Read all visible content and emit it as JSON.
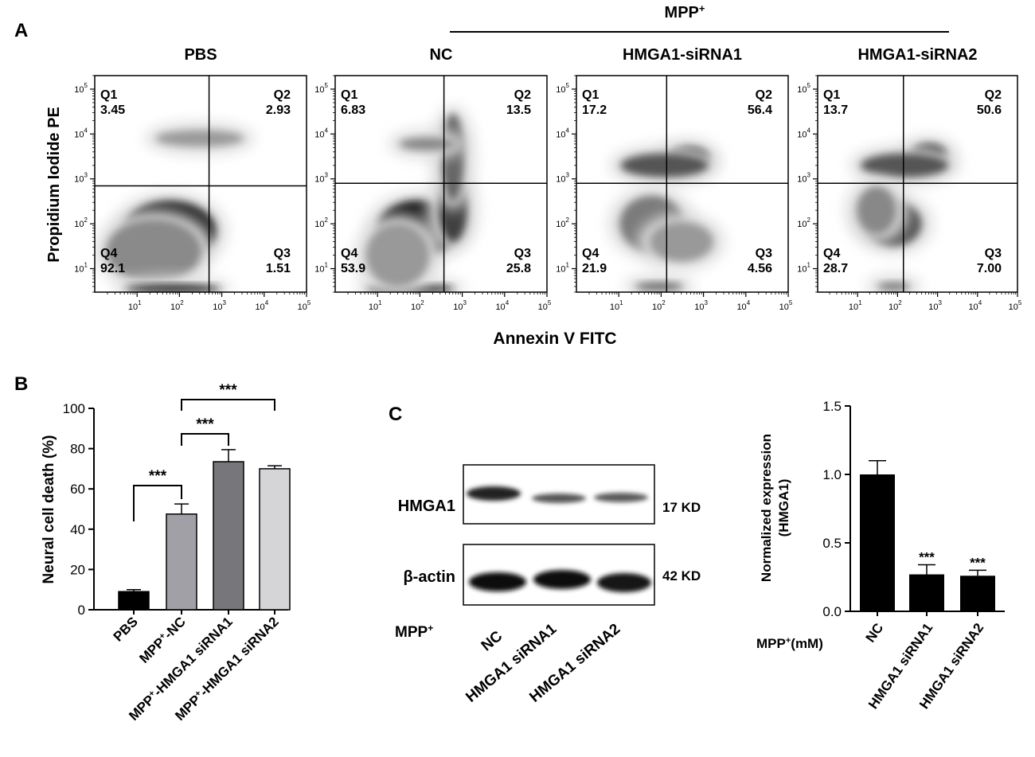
{
  "panel_labels": {
    "a": "A",
    "b": "B",
    "c": "C"
  },
  "panel_a": {
    "treatment_header": "MPP",
    "treatment_header_sup": "+",
    "ylabel": "Propidium Iodide PE",
    "xlabel": "Annexin V FITC",
    "tick_base": "10",
    "tick_exponents": [
      "1",
      "2",
      "3",
      "4",
      "5"
    ]
  },
  "panel_c": {
    "blot_rows": [
      {
        "protein": "HMGA1",
        "size": "17 KD"
      },
      {
        "protein": "β-actin",
        "size": "42 KD"
      }
    ],
    "lane_header": "MPP",
    "lane_header_sup": "+",
    "lanes": [
      "NC",
      "HMGA1 siRNA1",
      "HMGA1 siRNA2"
    ],
    "bar_lane_header": "MPP",
    "bar_lane_header_sup": "+",
    "bar_lane_header_unit": "(mM)"
  },
  "chart_data": [
    {
      "type": "scatter",
      "panel": "A",
      "plots": [
        {
          "title": "PBS",
          "quadrants": {
            "Q1": "3.45",
            "Q2": "2.93",
            "Q3": "1.51",
            "Q4": "92.1"
          }
        },
        {
          "title": "NC",
          "quadrants": {
            "Q1": "6.83",
            "Q2": "13.5",
            "Q3": "25.8",
            "Q4": "53.9"
          }
        },
        {
          "title": "HMGA1-siRNA1",
          "quadrants": {
            "Q1": "17.2",
            "Q2": "56.4",
            "Q3": "4.56",
            "Q4": "21.9"
          }
        },
        {
          "title": "HMGA1-siRNA2",
          "quadrants": {
            "Q1": "13.7",
            "Q2": "50.6",
            "Q3": "7.00",
            "Q4": "28.7"
          }
        }
      ],
      "xlabel": "Annexin V FITC",
      "ylabel": "Propidium Iodide PE",
      "xscale": "log",
      "yscale": "log",
      "xlim": [
        1,
        100000
      ],
      "ylim": [
        3,
        200000
      ]
    },
    {
      "type": "bar",
      "panel": "B",
      "categories": [
        "PBS",
        "MPP+-NC",
        "MPP+-HMGA1 siRNA1",
        "MPP+-HMGA1 siRNA2"
      ],
      "category_parts": [
        {
          "pre": "PBS",
          "sup": "",
          "post": ""
        },
        {
          "pre": "MPP",
          "sup": "+",
          "post": "-NC"
        },
        {
          "pre": "MPP",
          "sup": "+",
          "post": "-HMGA1 siRNA1"
        },
        {
          "pre": "MPP",
          "sup": "+",
          "post": "-HMGA1 siRNA2"
        }
      ],
      "values": [
        9,
        47.5,
        73.5,
        70
      ],
      "errors": [
        1,
        5,
        6,
        1.5
      ],
      "colors": [
        "#000000",
        "#a0a0a6",
        "#77777b",
        "#d5d5d7"
      ],
      "ylabel": "Neural cell death (%)",
      "ylim": [
        0,
        100
      ],
      "yticks": [
        "0",
        "20",
        "40",
        "60",
        "80",
        "100"
      ],
      "significance": [
        {
          "from": 0,
          "to": 1,
          "label": "***"
        },
        {
          "from": 1,
          "to": 2,
          "label": "***"
        },
        {
          "from": 1,
          "to": 3,
          "label": "***"
        }
      ]
    },
    {
      "type": "bar",
      "panel": "C",
      "categories": [
        "NC",
        "HMGA1 siRNA1",
        "HMGA1 siRNA2"
      ],
      "values": [
        1.0,
        0.27,
        0.26
      ],
      "errors": [
        0.1,
        0.07,
        0.04
      ],
      "color": "#000000",
      "ylabel_lines": [
        "Normalized expression",
        "(HMGA1)"
      ],
      "ylim": [
        0,
        1.5
      ],
      "yticks": [
        "0.0",
        "0.5",
        "1.0",
        "1.5"
      ],
      "stars": [
        "",
        "***",
        "***"
      ]
    }
  ]
}
